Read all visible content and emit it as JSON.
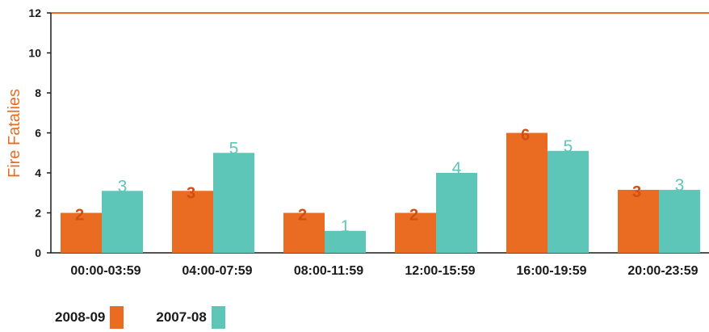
{
  "chart_data": {
    "type": "bar",
    "title": "",
    "xlabel": "",
    "ylabel": "Fire Fatalies",
    "ylim": [
      0,
      12
    ],
    "yticks": [
      0,
      2,
      4,
      6,
      8,
      10,
      12
    ],
    "categories": [
      "00:00-03:59",
      "04:00-07:59",
      "08:00-11:59",
      "12:00-15:59",
      "16:00-19:59",
      "20:00-23:59"
    ],
    "series": [
      {
        "name": "2008-09",
        "values": [
          2,
          3,
          2,
          2,
          6,
          3
        ]
      },
      {
        "name": "2007-08",
        "values": [
          3,
          5,
          1,
          4,
          5,
          3
        ]
      }
    ],
    "bar_values_drawn": [
      [
        2,
        3.1,
        2,
        2,
        6,
        3.15
      ],
      [
        3.1,
        5,
        1.1,
        4,
        5.1,
        3.15
      ]
    ],
    "legend_position": "bottom-left",
    "grid": false
  },
  "colors": {
    "series": [
      "#ea6b22",
      "#5ec6b9"
    ],
    "axis": "#1a1a1a",
    "top_rule": "#ea6b22",
    "ylabel": "#ea6b22"
  }
}
